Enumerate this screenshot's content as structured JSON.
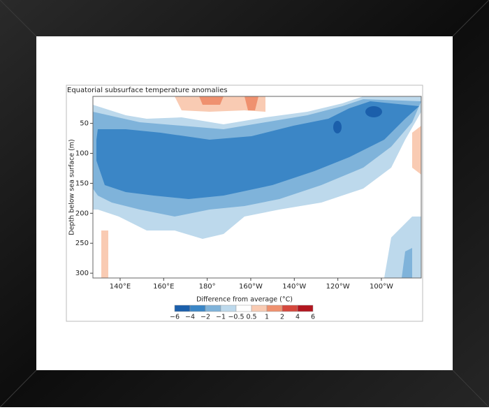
{
  "chart_data": {
    "type": "contour",
    "title": "Equatorial subsurface temperature anomalies",
    "ylabel": "Depth below sea surface (m)",
    "colorbar_label": "Difference from average (°C)",
    "xlim": [
      127.5,
      278.3
    ],
    "xticks": [
      {
        "value": 140,
        "label": "140°E"
      },
      {
        "value": 160,
        "label": "160°E"
      },
      {
        "value": 180,
        "label": "180°"
      },
      {
        "value": 200,
        "label": "160°W"
      },
      {
        "value": 220,
        "label": "140°W"
      },
      {
        "value": 240,
        "label": "120°W"
      },
      {
        "value": 260,
        "label": "100°W"
      }
    ],
    "ylim": [
      308,
      5
    ],
    "yticks": [
      50,
      100,
      150,
      200,
      250,
      300
    ],
    "levels": [
      {
        "value": -6,
        "label": "−6"
      },
      {
        "value": -4,
        "label": "−4"
      },
      {
        "value": -2,
        "label": "−2"
      },
      {
        "value": -1,
        "label": "−1"
      },
      {
        "value": -0.5,
        "label": "−0.5"
      },
      0.5,
      1,
      2,
      4,
      6
    ],
    "colors": [
      "#1b5fab",
      "#3b86c6",
      "#7fb3da",
      "#bdd9ec",
      "#ffffff",
      "#f9cbb3",
      "#ef916f",
      "#d5483d",
      "#b2161f"
    ]
  }
}
